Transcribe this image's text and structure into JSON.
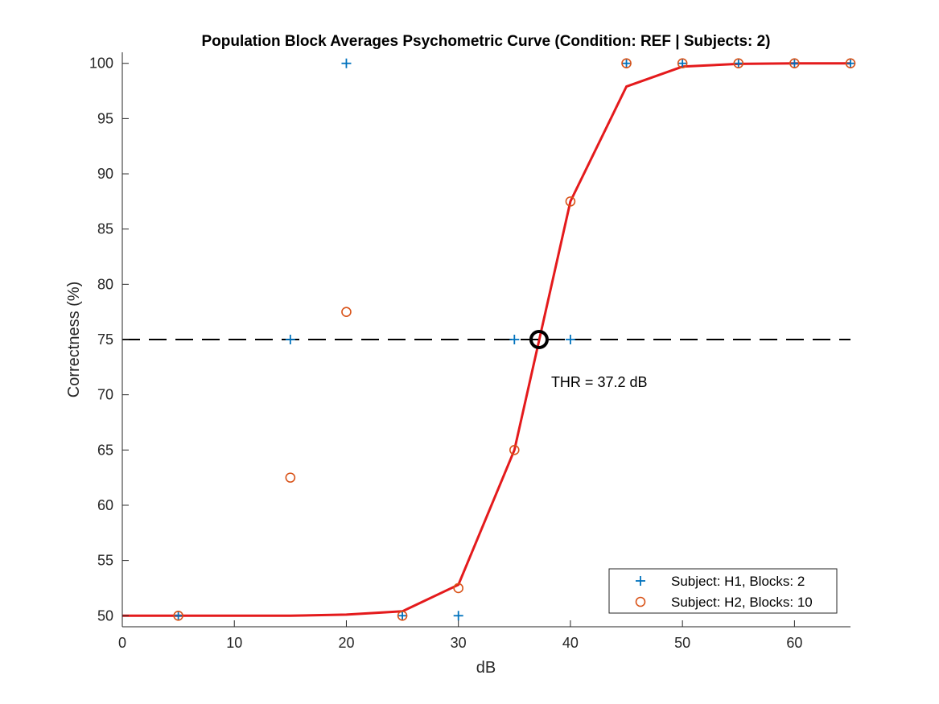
{
  "chart_data": {
    "type": "scatter",
    "title": "Population Block Averages Psychometric Curve (Condition: REF | Subjects: 2)",
    "xlabel": "dB",
    "ylabel": "Correctness (%)",
    "xlim": [
      0,
      65
    ],
    "ylim": [
      49,
      101
    ],
    "xticks": [
      0,
      10,
      20,
      30,
      40,
      50,
      60
    ],
    "yticks": [
      50,
      55,
      60,
      65,
      70,
      75,
      80,
      85,
      90,
      95,
      100
    ],
    "grid": false,
    "legend_position": "bottom-right",
    "series": [
      {
        "name": "Subject: H1, Blocks: 2",
        "marker": "plus",
        "color": "#0072BD",
        "x": [
          5,
          15,
          20,
          25,
          30,
          35,
          40,
          45,
          50,
          55,
          60,
          65
        ],
        "y": [
          50,
          75,
          100,
          50,
          50,
          75,
          75,
          100,
          100,
          100,
          100,
          100
        ]
      },
      {
        "name": "Subject: H2, Blocks: 10",
        "marker": "circle",
        "color": "#D95319",
        "x": [
          5,
          15,
          20,
          25,
          30,
          35,
          40,
          45,
          50,
          55,
          60,
          65
        ],
        "y": [
          50,
          62.5,
          77.5,
          50,
          52.5,
          65,
          87.5,
          100,
          100,
          100,
          100,
          100
        ]
      }
    ],
    "fit_curve": {
      "color": "#E41A1C",
      "x": [
        0,
        5,
        10,
        15,
        20,
        25,
        30,
        35,
        40,
        45,
        50,
        55,
        60,
        65
      ],
      "y": [
        50,
        50,
        50,
        50,
        50.1,
        50.4,
        52.8,
        65,
        87.5,
        97.9,
        99.7,
        99.95,
        100,
        100
      ]
    },
    "threshold": {
      "level": 75,
      "x": 37.2,
      "label": "THR = 37.2 dB"
    }
  }
}
